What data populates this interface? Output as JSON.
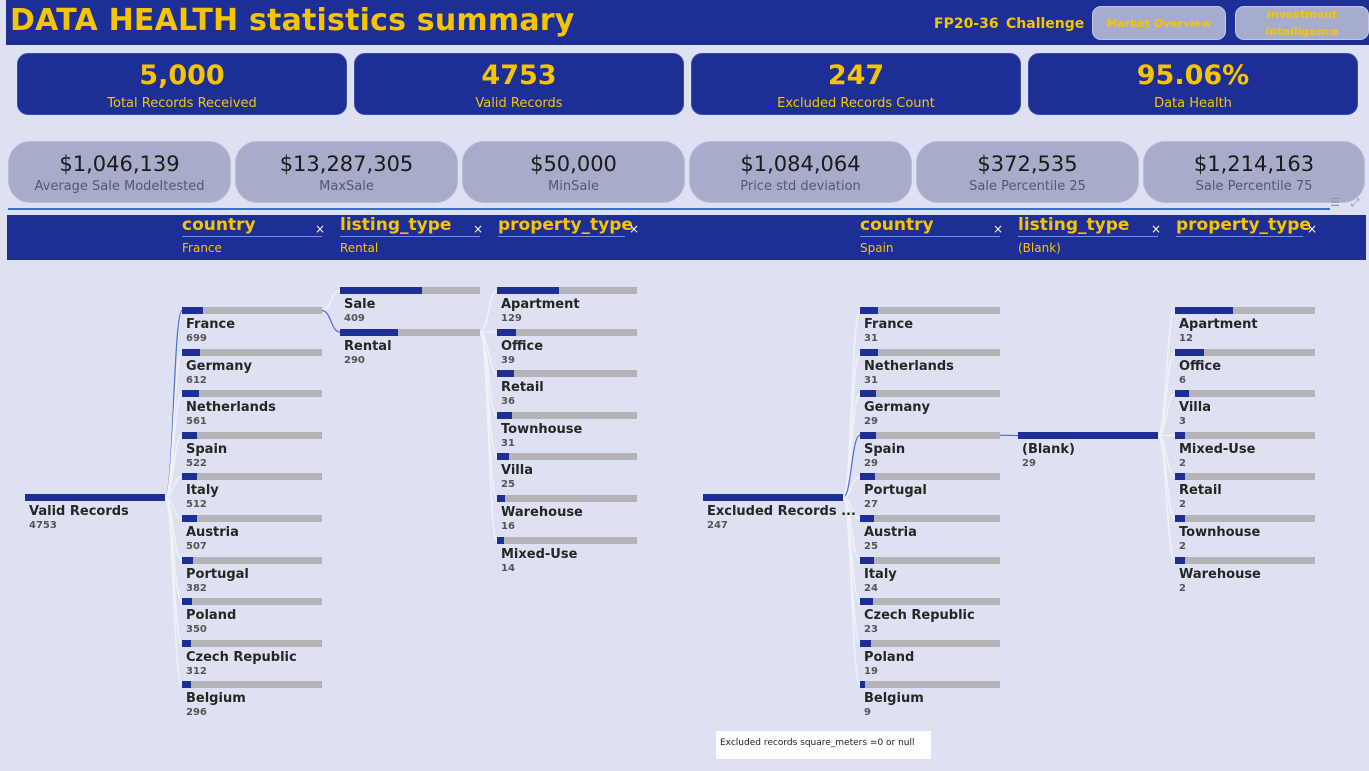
{
  "header": {
    "title": "DATA HEALTH statistics summary",
    "code": "FP20-36",
    "challenge": "Challenge",
    "nav1": "Market Overview",
    "nav2_line1": "Investment",
    "nav2_line2": "Intelligence"
  },
  "kpis": [
    {
      "value": "5,000",
      "label": "Total Records Received"
    },
    {
      "value": "4753",
      "label": "Valid Records"
    },
    {
      "value": "247",
      "label": "Excluded Records Count"
    },
    {
      "value": "95.06%",
      "label": "Data Health"
    }
  ],
  "stats": [
    {
      "value": "$1,046,139",
      "label": "Average Sale ModeItested"
    },
    {
      "value": "$13,287,305",
      "label": "MaxSale"
    },
    {
      "value": "$50,000",
      "label": "MinSale"
    },
    {
      "value": "$1,084,064",
      "label": "Price std deviation"
    },
    {
      "value": "$372,535",
      "label": "Sale Percentile 25"
    },
    {
      "value": "$1,214,163",
      "label": "Sale Percentile 75"
    }
  ],
  "tree_left": {
    "levels": [
      {
        "name": "country",
        "selected": "France"
      },
      {
        "name": "listing_type",
        "selected": "Rental"
      },
      {
        "name": "property_type",
        "selected": ""
      }
    ],
    "root": {
      "label": "Valid Records",
      "count": 4753
    },
    "countries": [
      {
        "label": "France",
        "count": 699
      },
      {
        "label": "Germany",
        "count": 612
      },
      {
        "label": "Netherlands",
        "count": 561
      },
      {
        "label": "Spain",
        "count": 522
      },
      {
        "label": "Italy",
        "count": 512
      },
      {
        "label": "Austria",
        "count": 507
      },
      {
        "label": "Portugal",
        "count": 382
      },
      {
        "label": "Poland",
        "count": 350
      },
      {
        "label": "Czech Republic",
        "count": 312
      },
      {
        "label": "Belgium",
        "count": 296
      }
    ],
    "listing_types": [
      {
        "label": "Sale",
        "count": 409
      },
      {
        "label": "Rental",
        "count": 290
      }
    ],
    "property_types": [
      {
        "label": "Apartment",
        "count": 129
      },
      {
        "label": "Office",
        "count": 39
      },
      {
        "label": "Retail",
        "count": 36
      },
      {
        "label": "Townhouse",
        "count": 31
      },
      {
        "label": "Villa",
        "count": 25
      },
      {
        "label": "Warehouse",
        "count": 16
      },
      {
        "label": "Mixed-Use",
        "count": 14
      }
    ]
  },
  "tree_right": {
    "levels": [
      {
        "name": "country",
        "selected": "Spain"
      },
      {
        "name": "listing_type",
        "selected": "(Blank)"
      },
      {
        "name": "property_type",
        "selected": ""
      }
    ],
    "root": {
      "label": "Excluded Records ...",
      "count": 247
    },
    "countries": [
      {
        "label": "France",
        "count": 31
      },
      {
        "label": "Netherlands",
        "count": 31
      },
      {
        "label": "Germany",
        "count": 29
      },
      {
        "label": "Spain",
        "count": 29
      },
      {
        "label": "Portugal",
        "count": 27
      },
      {
        "label": "Austria",
        "count": 25
      },
      {
        "label": "Italy",
        "count": 24
      },
      {
        "label": "Czech Republic",
        "count": 23
      },
      {
        "label": "Poland",
        "count": 19
      },
      {
        "label": "Belgium",
        "count": 9
      }
    ],
    "listing_types": [
      {
        "label": "(Blank)",
        "count": 29
      }
    ],
    "property_types": [
      {
        "label": "Apartment",
        "count": 12
      },
      {
        "label": "Office",
        "count": 6
      },
      {
        "label": "Villa",
        "count": 3
      },
      {
        "label": "Mixed-Use",
        "count": 2
      },
      {
        "label": "Retail",
        "count": 2
      },
      {
        "label": "Townhouse",
        "count": 2
      },
      {
        "label": "Warehouse",
        "count": 2
      }
    ]
  },
  "note": "Excluded records square_meters =0 or null",
  "colors": {
    "accent": "#f7c500",
    "brand": "#1d2f96",
    "bar_bg": "#b3b3b8",
    "background": "#dde1f2"
  }
}
